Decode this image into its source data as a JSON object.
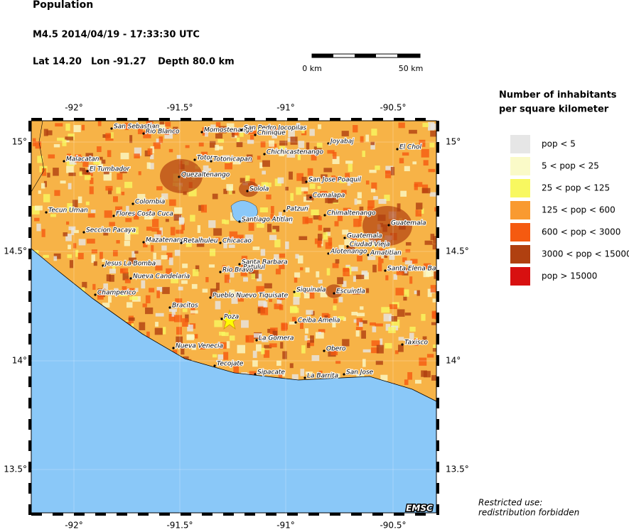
{
  "header": {
    "title": "Population",
    "event": "M4.5  2014/04/19 - 17:33:30 UTC",
    "lat": "Lat 14.20",
    "lon": "Lon -91.27",
    "depth": "Depth  80.0 km"
  },
  "scale_bar": {
    "start": "0 km",
    "end": "50 km"
  },
  "axes": {
    "lon_ticks": [
      "-92°",
      "-91.5°",
      "-91°",
      "-90.5°"
    ],
    "lat_ticks": [
      "15°",
      "14.5°",
      "14°",
      "13.5°"
    ]
  },
  "cities": [
    "San Sebastian",
    "Rio Blanco",
    "Momostenango",
    "San Pedro Jocopilas",
    "Chinique",
    "Totor",
    "Totonicapan",
    "Chichicastenango",
    "Joyabaj",
    "El Chol",
    "Malacatan",
    "El Tumbador",
    "Quezaltenango",
    "San Jose Poaquil",
    "Solola",
    "Comalapa",
    "Colombia",
    "Tecun Uman",
    "Flores Costa Cuca",
    "Patzun",
    "Chimaltenango",
    "Santiago Atitlan",
    "Guatemala",
    "Seccion Pacaya",
    "Guatemala",
    "Ciudad Vieja",
    "Mazatenango",
    "Retalhuleu",
    "Chicacao",
    "Santa Barbara",
    "Patulul",
    "Alotenango",
    "Amatitlan",
    "Jesus La Bomba",
    "Rio Bravo",
    "Santa Elena Ba",
    "Nueva Candelaria",
    "Champerico",
    "Pueblo Nuevo Tiquisate",
    "Siquinala",
    "Escuintla",
    "Bracitos",
    "Poza",
    "Ceiba Amelia",
    "La Gomera",
    "Taxisco",
    "Nueva Venecia",
    "Obero",
    "Tecojate",
    "Sipacate",
    "San Jose",
    "La Barrita"
  ],
  "legend": {
    "title": [
      "Number of inhabitants",
      "per square kilometer"
    ],
    "items": [
      {
        "label": "pop < 5",
        "color": "#e6e6e6"
      },
      {
        "label": "5 < pop < 25",
        "color": "#fafac8"
      },
      {
        "label": "25 < pop < 125",
        "color": "#f8f860"
      },
      {
        "label": "125 < pop < 600",
        "color": "#f99a30"
      },
      {
        "label": "600 < pop < 3000",
        "color": "#f55a10"
      },
      {
        "label": "3000 < pop < 15000",
        "color": "#b04010"
      },
      {
        "label": "pop > 15000",
        "color": "#d81010"
      }
    ]
  },
  "footer": {
    "note": [
      "Restricted use:",
      "redistribution forbidden"
    ],
    "brand": "EMSC"
  }
}
